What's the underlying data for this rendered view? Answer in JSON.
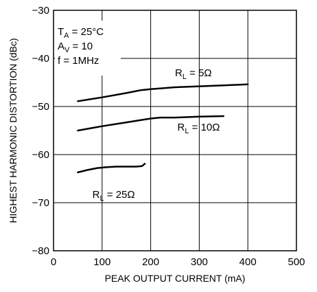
{
  "chart_data": {
    "type": "line",
    "xlabel": "PEAK OUTPUT CURRENT (mA)",
    "ylabel": "HIGHEST HARMONIC DISTORTION (dBc)",
    "xlim": [
      0,
      500
    ],
    "ylim": [
      -80,
      -30
    ],
    "x_ticks": [
      "0",
      "100",
      "200",
      "300",
      "400",
      "500"
    ],
    "y_ticks": [
      "−30",
      "−40",
      "−50",
      "−60",
      "−70",
      "−80"
    ],
    "grid": true,
    "conditions": [
      {
        "main": "T",
        "sub": "A",
        "rest": " = 25°C"
      },
      {
        "main": "A",
        "sub": "V",
        "rest": " = 10"
      },
      {
        "main": "f = 1MHz",
        "sub": "",
        "rest": ""
      }
    ],
    "series": [
      {
        "label_main": "R",
        "label_sub": "L",
        "label_rest": " = 5Ω",
        "label_at": [
          250,
          -43.7
        ],
        "x": [
          50,
          100,
          150,
          180,
          200,
          250,
          300,
          350,
          400
        ],
        "y": [
          -48.9,
          -48.1,
          -47.2,
          -46.6,
          -46.4,
          -46.0,
          -45.8,
          -45.6,
          -45.4
        ]
      },
      {
        "label_main": "R",
        "label_sub": "L",
        "label_rest": " = 10Ω",
        "label_at": [
          255,
          -55.0
        ],
        "x": [
          50,
          100,
          150,
          200,
          220,
          250,
          300,
          350
        ],
        "y": [
          -55.0,
          -54.1,
          -53.3,
          -52.5,
          -52.3,
          -52.3,
          -52.1,
          -52.0
        ]
      },
      {
        "label_main": "R",
        "label_sub": "L",
        "label_rest": " = 25Ω",
        "label_at": [
          80,
          -69.0
        ],
        "x": [
          50,
          70,
          90,
          110,
          130,
          150,
          170,
          182,
          188
        ],
        "y": [
          -63.7,
          -63.2,
          -62.8,
          -62.6,
          -62.5,
          -62.5,
          -62.5,
          -62.4,
          -61.9
        ]
      }
    ]
  }
}
